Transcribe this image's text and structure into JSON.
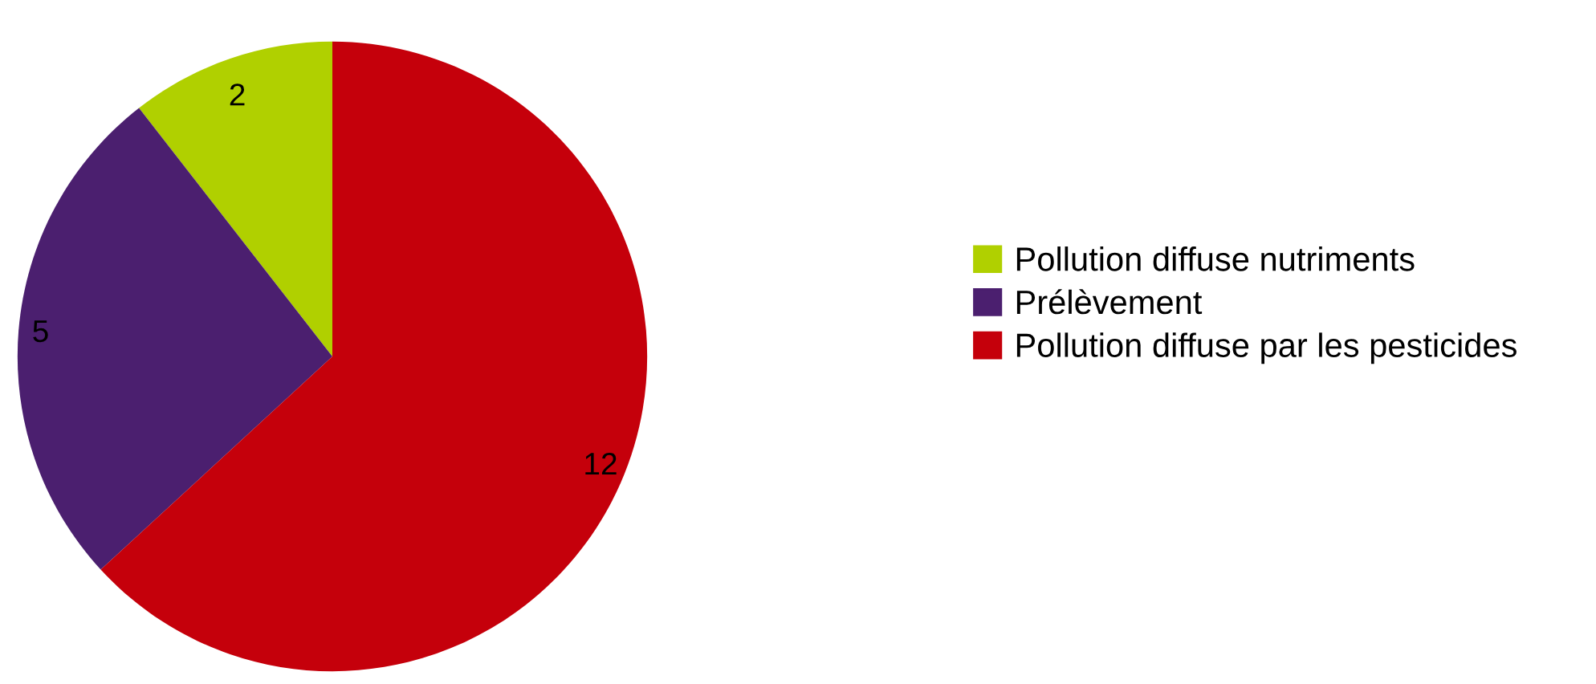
{
  "chart_data": {
    "type": "pie",
    "categories": [
      "Pollution diffuse nutriments",
      "Prélèvement",
      "Pollution diffuse par les pesticides"
    ],
    "values": [
      2,
      5,
      12
    ],
    "colors": [
      "#b0d000",
      "#4b1f6f",
      "#c5000b"
    ],
    "data_labels": true,
    "legend": "right"
  }
}
